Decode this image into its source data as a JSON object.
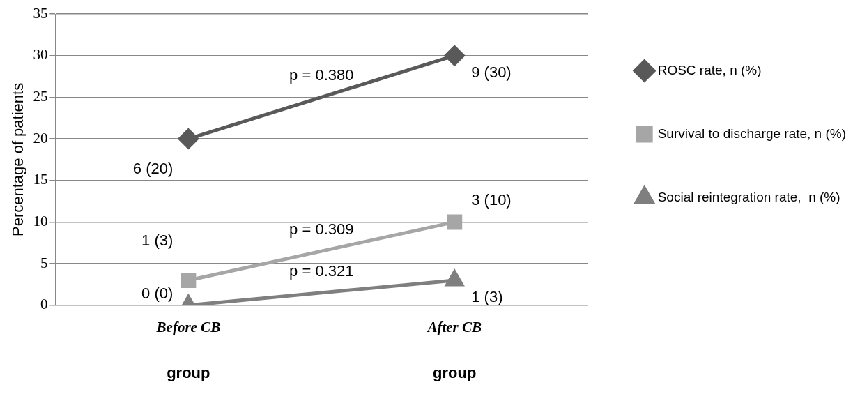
{
  "chart_data": {
    "type": "line",
    "ylabel": "Percentage of patients",
    "categories": [
      "Before CB",
      "After CB"
    ],
    "series": [
      {
        "name": "ROSC rate, n (%)",
        "color": "#595959",
        "marker": "diamond",
        "values": [
          20,
          30
        ],
        "value_labels": [
          "6 (20)",
          "9 (30)"
        ]
      },
      {
        "name": "Survival to discharge rate, n (%)",
        "color": "#a6a6a6",
        "marker": "square",
        "values": [
          3,
          10
        ],
        "value_labels": [
          "1 (3)",
          "3 (10)"
        ]
      },
      {
        "name": "Social reintegration rate,  n (%)",
        "color": "#7f7f7f",
        "marker": "triangle",
        "values": [
          0,
          3
        ],
        "value_labels": [
          "0 (0)",
          "1 (3)"
        ]
      }
    ],
    "annotations": [
      "p = 0.380",
      "p = 0.309",
      "p = 0.321",
      "group",
      "group"
    ],
    "ylim": [
      0,
      35
    ],
    "yticks": [
      0,
      5,
      10,
      15,
      20,
      25,
      30,
      35
    ],
    "grid": "y",
    "legend": "right",
    "line_style": "solid"
  }
}
